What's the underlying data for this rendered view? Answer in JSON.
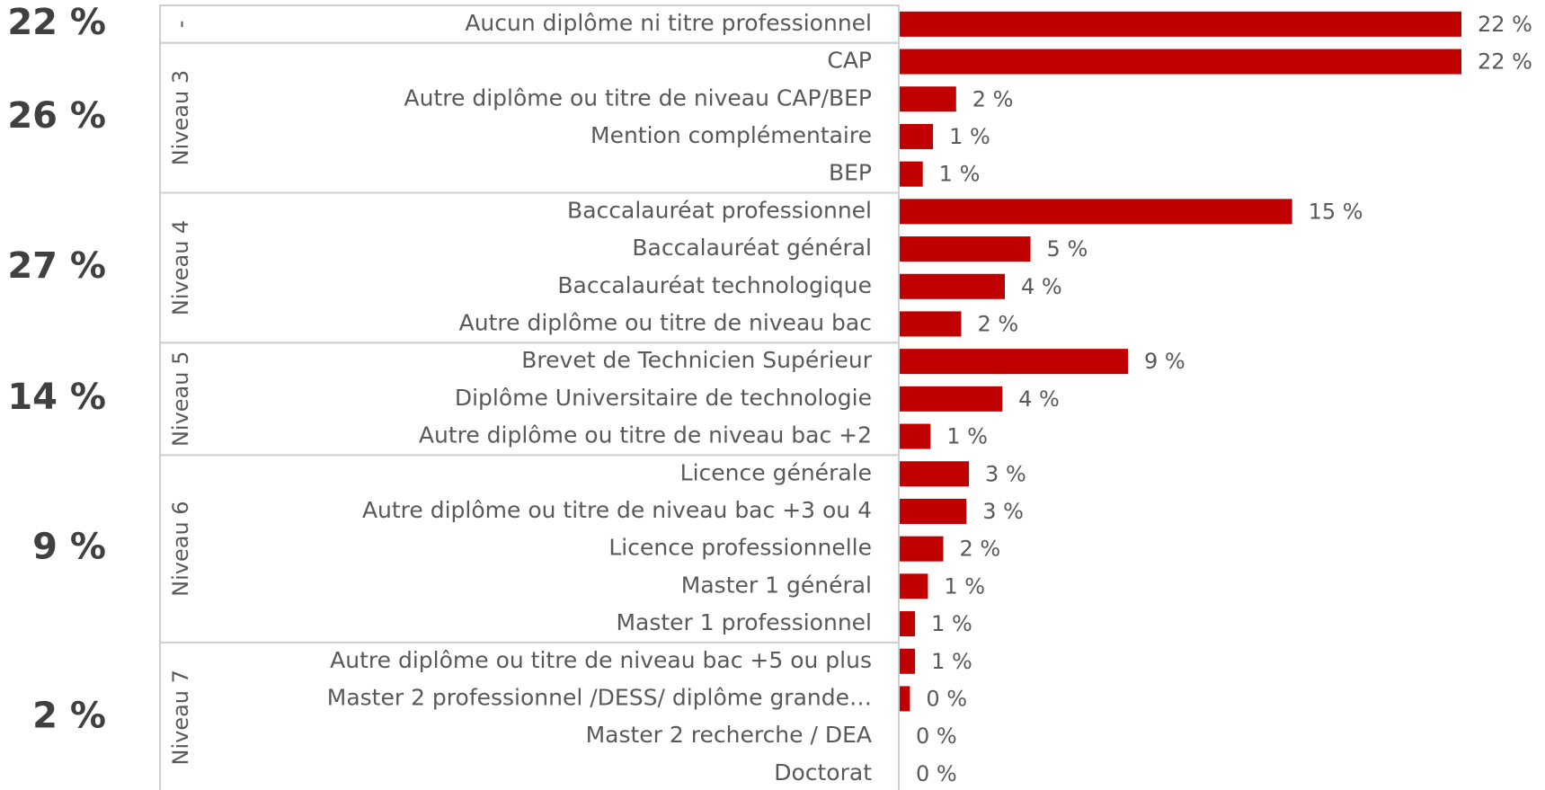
{
  "chart_data": {
    "type": "bar",
    "orientation": "horizontal",
    "color": "#c00000",
    "groups": [
      {
        "name": "-",
        "total": 22,
        "total_label": "22 %",
        "categories": [
          "Aucun diplôme ni titre professionnel"
        ],
        "values": [
          21.9
        ],
        "value_labels": [
          "22 %"
        ]
      },
      {
        "name": "Niveau 3",
        "total": 26,
        "total_label": "26 %",
        "categories": [
          "CAP",
          "Autre diplôme ou titre de niveau CAP/BEP",
          "Mention complémentaire",
          "BEP"
        ],
        "values": [
          21.9,
          2.2,
          1.3,
          0.9
        ],
        "value_labels": [
          "22 %",
          "2 %",
          "1 %",
          "1 %"
        ]
      },
      {
        "name": "Niveau 4",
        "total": 27,
        "total_label": "27 %",
        "categories": [
          "Baccalauréat professionnel",
          "Baccalauréat général",
          "Baccalauréat technologique",
          "Autre diplôme ou titre de niveau bac"
        ],
        "values": [
          15.3,
          5.1,
          4.1,
          2.4
        ],
        "value_labels": [
          "15 %",
          "5 %",
          "4 %",
          "2 %"
        ]
      },
      {
        "name": "Niveau 5",
        "total": 14,
        "total_label": "14 %",
        "categories": [
          "Brevet de Technicien Supérieur",
          "Diplôme Universitaire de technologie",
          "Autre diplôme ou titre de niveau bac +2"
        ],
        "values": [
          8.9,
          4.0,
          1.2
        ],
        "value_labels": [
          "9 %",
          "4 %",
          "1 %"
        ]
      },
      {
        "name": "Niveau 6",
        "total": 9,
        "total_label": "9 %",
        "categories": [
          "Licence générale",
          "Autre diplôme ou titre de niveau bac +3 ou 4",
          "Licence professionnelle",
          "Master 1 général",
          "Master 1 professionnel"
        ],
        "values": [
          2.7,
          2.6,
          1.7,
          1.1,
          0.6
        ],
        "value_labels": [
          "3 %",
          "3 %",
          "2 %",
          "1 %",
          "1 %"
        ]
      },
      {
        "name": "Niveau 7",
        "total": 2,
        "total_label": "2 %",
        "categories": [
          "Autre diplôme ou titre de niveau bac +5 ou plus",
          "Master 2 professionnel /DESS/ diplôme grande…",
          "Master 2 recherche / DEA",
          "Doctorat"
        ],
        "values": [
          0.6,
          0.4,
          0,
          0
        ],
        "value_labels": [
          "1 %",
          "0 %",
          "0 %",
          "0 %"
        ]
      }
    ]
  }
}
